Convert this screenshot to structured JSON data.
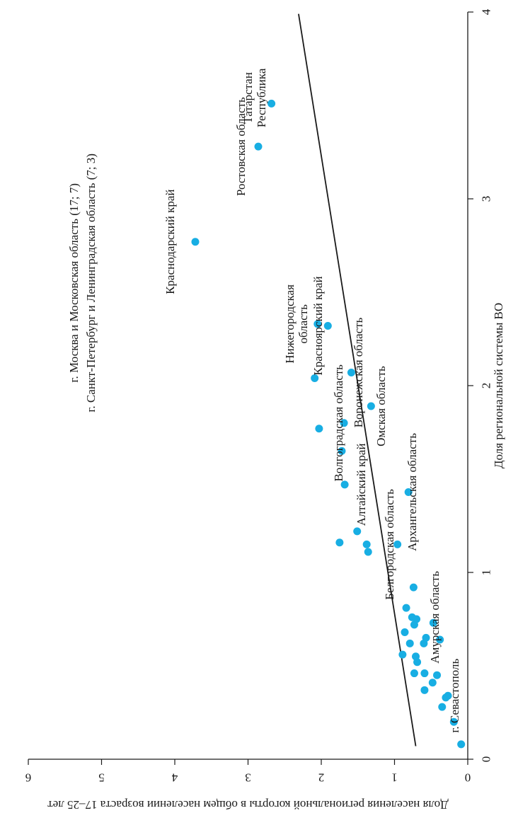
{
  "chart_data": {
    "type": "scatter",
    "xlabel": "Доля региональной системы ВО",
    "ylabel": "Доля населения региональной когорты в общем населении возраста 17–25 лет",
    "xlim": [
      0,
      4
    ],
    "ylim": [
      0,
      6
    ],
    "x_ticks": [
      "0",
      "1",
      "2",
      "3",
      "4"
    ],
    "y_ticks": [
      "0",
      "1",
      "2",
      "3",
      "4",
      "5",
      "6"
    ],
    "grid": false,
    "legend": "none",
    "colors": {
      "points": "#18aee3",
      "trend": "#1a1a1a",
      "axis": "#1a1a1a"
    },
    "trend_line": {
      "x": [
        0.07,
        3.99
      ],
      "y": [
        0.71,
        2.31
      ]
    },
    "offscale_note": [
      "г. Москва и Московская область (17; 7)",
      "г. Санкт-Петербург и Ленинградская область (7; 3)"
    ],
    "points": [
      {
        "x": 3.51,
        "y": 2.68,
        "label": "Республика Татарстан"
      },
      {
        "x": 3.28,
        "y": 2.86,
        "label": "Ростовская область"
      },
      {
        "x": 2.77,
        "y": 3.72,
        "label": "Краснодарский край"
      },
      {
        "x": 2.33,
        "y": 2.05,
        "label": "Нижегородская область"
      },
      {
        "x": 2.32,
        "y": 1.91,
        "label": "Красноярский край"
      },
      {
        "x": 2.07,
        "y": 1.59,
        "label": "Воронежская область"
      },
      {
        "x": 2.04,
        "y": 2.09,
        "label": ""
      },
      {
        "x": 1.89,
        "y": 1.32,
        "label": "Омская область"
      },
      {
        "x": 1.8,
        "y": 1.69,
        "label": "Волгоградская область"
      },
      {
        "x": 1.77,
        "y": 2.03,
        "label": ""
      },
      {
        "x": 1.65,
        "y": 1.72,
        "label": ""
      },
      {
        "x": 1.47,
        "y": 1.68,
        "label": "Алтайский край"
      },
      {
        "x": 1.43,
        "y": 0.81,
        "label": "Архангельская область"
      },
      {
        "x": 1.22,
        "y": 1.51,
        "label": ""
      },
      {
        "x": 1.16,
        "y": 1.75,
        "label": ""
      },
      {
        "x": 1.15,
        "y": 1.38,
        "label": ""
      },
      {
        "x": 1.15,
        "y": 0.96,
        "label": "Белгородская область"
      },
      {
        "x": 1.11,
        "y": 1.36,
        "label": ""
      },
      {
        "x": 0.92,
        "y": 0.74,
        "label": ""
      },
      {
        "x": 0.81,
        "y": 0.84,
        "label": ""
      },
      {
        "x": 0.76,
        "y": 0.76,
        "label": "Амурская область"
      },
      {
        "x": 0.75,
        "y": 0.7,
        "label": ""
      },
      {
        "x": 0.73,
        "y": 0.47,
        "label": ""
      },
      {
        "x": 0.72,
        "y": 0.73,
        "label": ""
      },
      {
        "x": 0.68,
        "y": 0.86,
        "label": ""
      },
      {
        "x": 0.65,
        "y": 0.57,
        "label": ""
      },
      {
        "x": 0.64,
        "y": 0.38,
        "label": ""
      },
      {
        "x": 0.62,
        "y": 0.79,
        "label": ""
      },
      {
        "x": 0.62,
        "y": 0.6,
        "label": ""
      },
      {
        "x": 0.56,
        "y": 0.89,
        "label": ""
      },
      {
        "x": 0.55,
        "y": 0.71,
        "label": ""
      },
      {
        "x": 0.52,
        "y": 0.69,
        "label": ""
      },
      {
        "x": 0.46,
        "y": 0.73,
        "label": ""
      },
      {
        "x": 0.46,
        "y": 0.59,
        "label": ""
      },
      {
        "x": 0.45,
        "y": 0.42,
        "label": ""
      },
      {
        "x": 0.41,
        "y": 0.48,
        "label": ""
      },
      {
        "x": 0.37,
        "y": 0.59,
        "label": ""
      },
      {
        "x": 0.34,
        "y": 0.27,
        "label": "г. Севастополь"
      },
      {
        "x": 0.33,
        "y": 0.3,
        "label": ""
      },
      {
        "x": 0.28,
        "y": 0.35,
        "label": ""
      },
      {
        "x": 0.2,
        "y": 0.19,
        "label": ""
      },
      {
        "x": 0.08,
        "y": 0.09,
        "label": ""
      }
    ]
  }
}
